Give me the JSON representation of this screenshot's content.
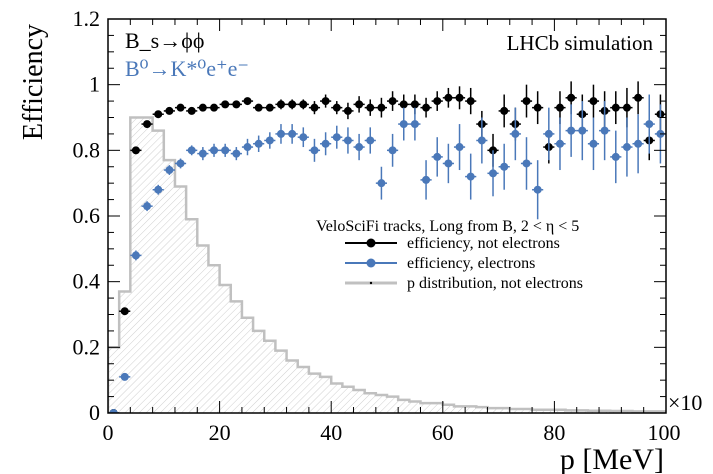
{
  "chart_data": {
    "type": "scatter",
    "ylabel": "Efficiency",
    "xlabel": "p [MeV]",
    "x_multiplier": "×10",
    "xlim": [
      0,
      100
    ],
    "ylim": [
      0,
      1.2
    ],
    "x_ticks": [
      "0",
      "20",
      "40",
      "60",
      "80",
      "100"
    ],
    "y_ticks": [
      "0",
      "0.2",
      "0.4",
      "0.6",
      "0.8",
      "1",
      "1.2"
    ],
    "grid": false,
    "annotations": {
      "decay1": "B_s→ϕϕ",
      "decay2": "B⁰→K*⁰e⁺e⁻",
      "lhcb": "LHCb simulation"
    },
    "legend": {
      "placement": "center-right",
      "title": "VeloSciFi tracks, Long from B, 2 < η < 5",
      "entries": [
        {
          "label": "efficiency, not electrons",
          "color": "#000000"
        },
        {
          "label": "efficiency, electrons",
          "color": "#4a78b9"
        },
        {
          "label": "p distribution, not electrons",
          "color": "#c0c0c0"
        }
      ]
    },
    "series": [
      {
        "name": "efficiency, not electrons",
        "color": "#000000",
        "x": [
          1,
          3,
          5,
          7,
          9,
          11,
          13,
          15,
          17,
          19,
          21,
          23,
          25,
          27,
          29,
          31,
          33,
          35,
          37,
          39,
          41,
          43,
          45,
          47,
          49,
          51,
          53,
          55,
          57,
          59,
          61,
          63,
          65,
          67,
          69,
          71,
          73,
          75,
          77,
          79,
          81,
          83,
          85,
          87,
          89,
          91,
          93,
          95,
          97,
          99
        ],
        "y": [
          0,
          0.31,
          0.8,
          0.88,
          0.91,
          0.92,
          0.93,
          0.92,
          0.93,
          0.93,
          0.94,
          0.94,
          0.95,
          0.93,
          0.93,
          0.94,
          0.94,
          0.94,
          0.93,
          0.95,
          0.93,
          0.92,
          0.94,
          0.93,
          0.93,
          0.95,
          0.94,
          0.94,
          0.93,
          0.95,
          0.96,
          0.96,
          0.95,
          0.88,
          0.8,
          0.92,
          0.88,
          0.95,
          0.93,
          0.81,
          0.93,
          0.96,
          0.91,
          0.95,
          0.92,
          0.93,
          0.93,
          0.96,
          0.83,
          0.91
        ],
        "err": [
          0,
          0.01,
          0.01,
          0.01,
          0.01,
          0.01,
          0.01,
          0.01,
          0.01,
          0.01,
          0.01,
          0.01,
          0.01,
          0.01,
          0.01,
          0.015,
          0.015,
          0.015,
          0.02,
          0.02,
          0.02,
          0.025,
          0.025,
          0.025,
          0.03,
          0.03,
          0.03,
          0.03,
          0.03,
          0.03,
          0.03,
          0.035,
          0.04,
          0.04,
          0.05,
          0.05,
          0.05,
          0.05,
          0.05,
          0.05,
          0.05,
          0.05,
          0.06,
          0.05,
          0.06,
          0.05,
          0.06,
          0.05,
          0.06,
          0.06
        ]
      },
      {
        "name": "efficiency, electrons",
        "color": "#4a78b9",
        "x": [
          1,
          3,
          5,
          7,
          9,
          11,
          13,
          15,
          17,
          19,
          21,
          23,
          25,
          27,
          29,
          31,
          33,
          35,
          37,
          39,
          41,
          43,
          45,
          47,
          49,
          51,
          53,
          55,
          57,
          59,
          61,
          63,
          65,
          67,
          69,
          71,
          73,
          75,
          77,
          79,
          81,
          83,
          85,
          87,
          89,
          91,
          93,
          95,
          97,
          99
        ],
        "y": [
          0,
          0.11,
          0.48,
          0.63,
          0.68,
          0.74,
          0.76,
          0.8,
          0.79,
          0.8,
          0.8,
          0.79,
          0.81,
          0.82,
          0.83,
          0.85,
          0.85,
          0.84,
          0.8,
          0.82,
          0.84,
          0.83,
          0.81,
          0.83,
          0.7,
          0.8,
          0.88,
          0.88,
          0.71,
          0.78,
          0.76,
          0.81,
          0.72,
          0.83,
          0.73,
          0.75,
          0.85,
          0.76,
          0.68,
          0.85,
          0.82,
          0.86,
          0.86,
          0.82,
          0.86,
          0.78,
          0.81,
          0.82,
          0.88,
          0.85
        ],
        "err": [
          0,
          0.01,
          0.015,
          0.015,
          0.015,
          0.015,
          0.015,
          0.015,
          0.02,
          0.02,
          0.02,
          0.02,
          0.025,
          0.025,
          0.025,
          0.03,
          0.03,
          0.03,
          0.035,
          0.035,
          0.035,
          0.04,
          0.04,
          0.04,
          0.05,
          0.05,
          0.05,
          0.05,
          0.06,
          0.06,
          0.06,
          0.07,
          0.07,
          0.07,
          0.07,
          0.07,
          0.08,
          0.08,
          0.09,
          0.08,
          0.08,
          0.08,
          0.09,
          0.08,
          0.09,
          0.08,
          0.09,
          0.09,
          0.09,
          0.09
        ]
      },
      {
        "name": "p distribution, not electrons",
        "color": "#c0c0c0",
        "type": "histogram",
        "bin_width": 2,
        "x": [
          1,
          3,
          5,
          7,
          9,
          11,
          13,
          15,
          17,
          19,
          21,
          23,
          25,
          27,
          29,
          31,
          33,
          35,
          37,
          39,
          41,
          43,
          45,
          47,
          49,
          51,
          53,
          55,
          57,
          59,
          61,
          63,
          65,
          67,
          69,
          71,
          73,
          75,
          77,
          79,
          81,
          83,
          85,
          87,
          89,
          91,
          93,
          95,
          97,
          99
        ],
        "y": [
          0.2,
          0.37,
          0.9,
          0.9,
          0.86,
          0.77,
          0.69,
          0.59,
          0.51,
          0.45,
          0.39,
          0.34,
          0.29,
          0.25,
          0.22,
          0.19,
          0.16,
          0.14,
          0.12,
          0.11,
          0.09,
          0.08,
          0.07,
          0.06,
          0.055,
          0.05,
          0.04,
          0.035,
          0.03,
          0.03,
          0.025,
          0.02,
          0.02,
          0.018,
          0.015,
          0.015,
          0.012,
          0.012,
          0.01,
          0.01,
          0.01,
          0.008,
          0.008,
          0.007,
          0.007,
          0.006,
          0.006,
          0.005,
          0.005,
          0.005
        ]
      }
    ]
  }
}
